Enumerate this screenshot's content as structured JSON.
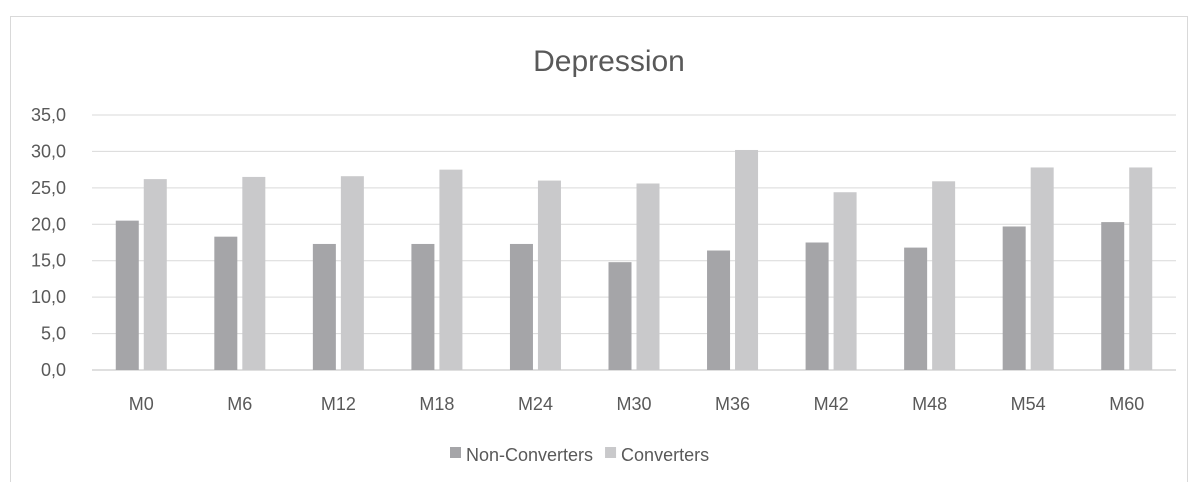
{
  "chart_data": {
    "type": "bar",
    "title": "Depression",
    "xlabel": "",
    "ylabel": "",
    "ylim": [
      0,
      35
    ],
    "ytick_step": 5,
    "ytick_labels": [
      "0,0",
      "5,0",
      "10,0",
      "15,0",
      "20,0",
      "25,0",
      "30,0",
      "35,0"
    ],
    "grid": true,
    "legend_position": "bottom",
    "categories": [
      "M0",
      "M6",
      "M12",
      "M18",
      "M24",
      "M30",
      "M36",
      "M42",
      "M48",
      "M54",
      "M60"
    ],
    "series": [
      {
        "name": "Non-Converters",
        "color": "#a5a5a8",
        "values": [
          20.5,
          18.3,
          17.3,
          17.3,
          17.3,
          14.8,
          16.4,
          17.5,
          16.8,
          19.7,
          20.3
        ]
      },
      {
        "name": "Converters",
        "color": "#c9c9cb",
        "values": [
          26.2,
          26.5,
          26.6,
          27.5,
          26.0,
          25.6,
          30.2,
          24.4,
          25.9,
          27.8,
          27.8
        ]
      }
    ]
  }
}
